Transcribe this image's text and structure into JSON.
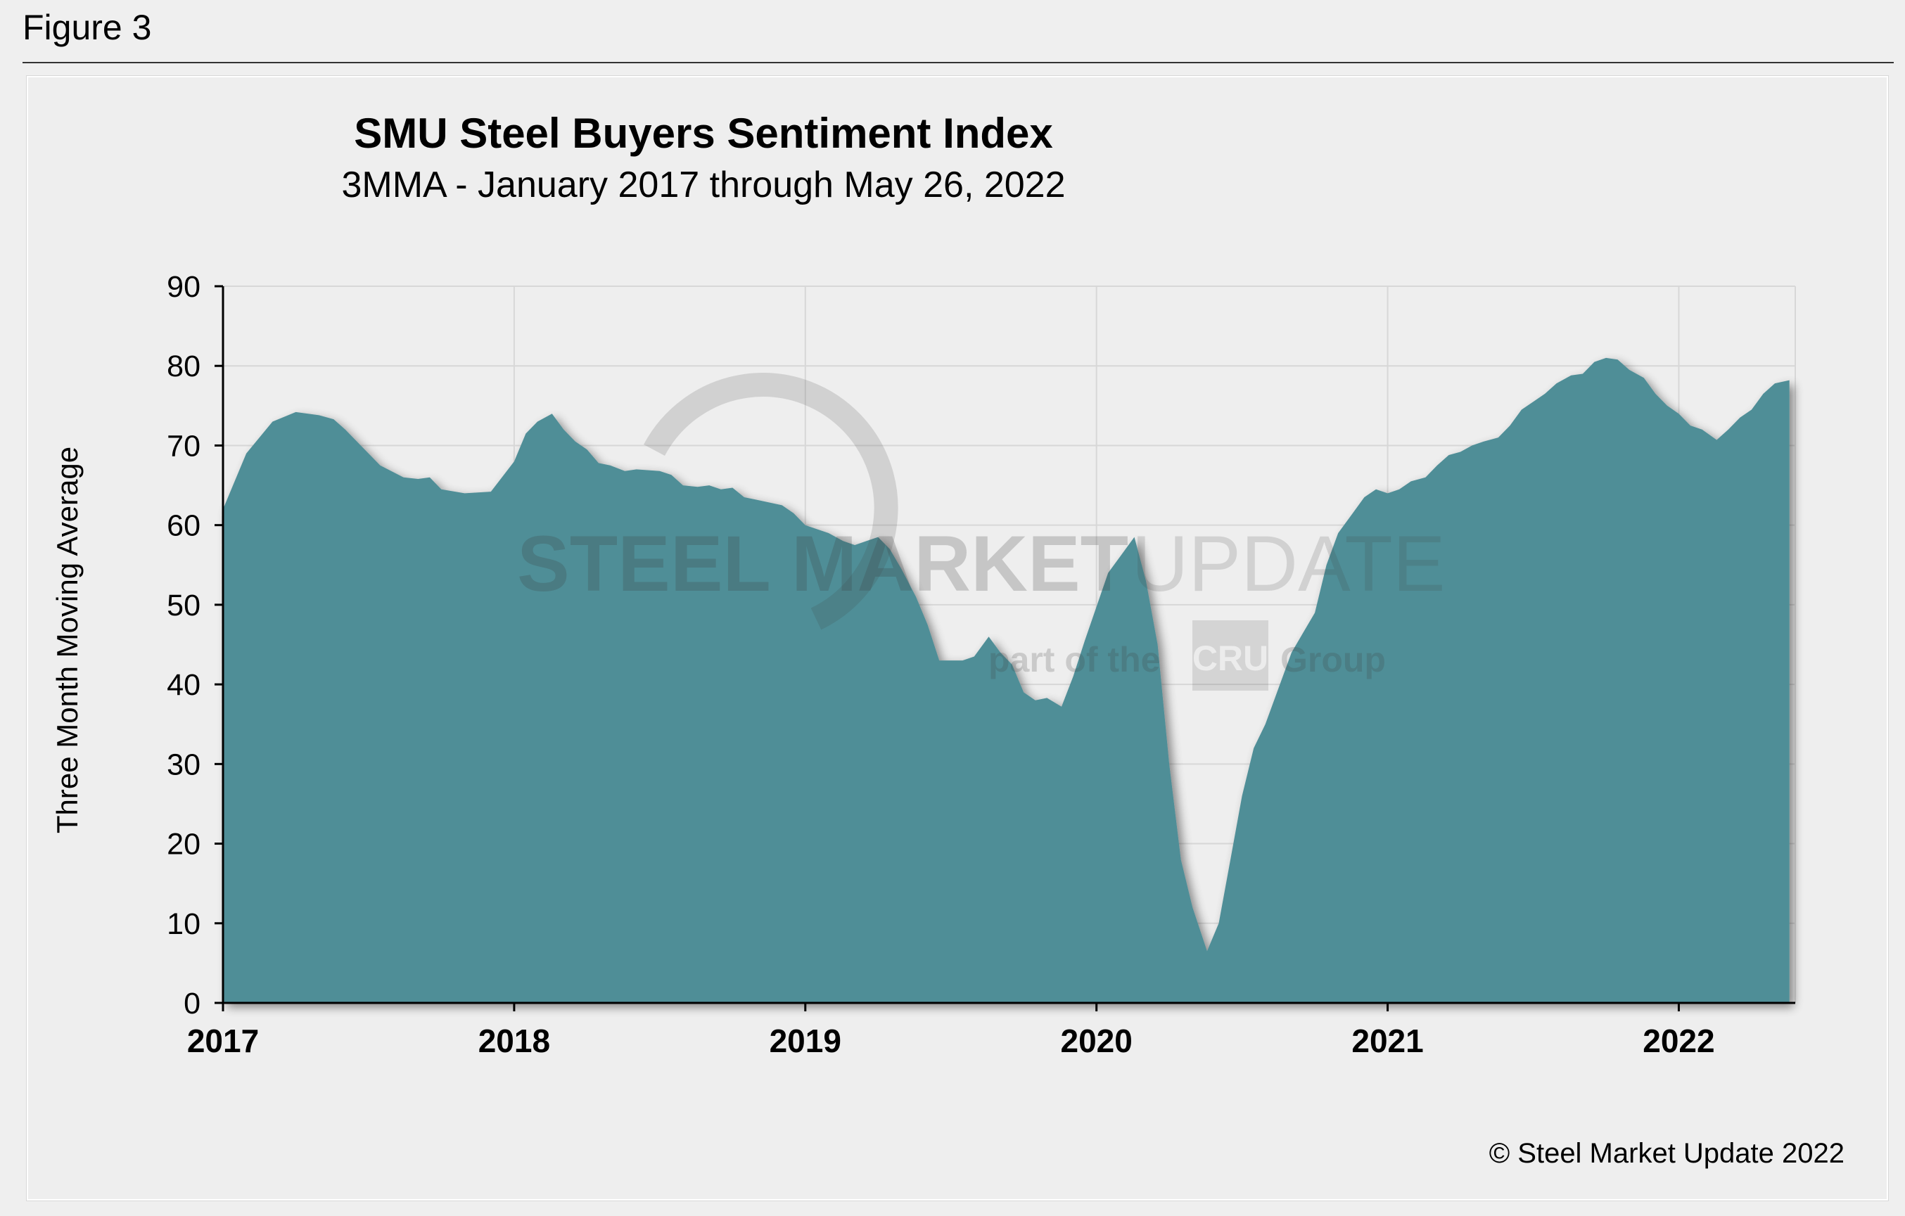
{
  "figure_label": "Figure 3",
  "copyright": "© Steel Market Update 2022",
  "watermark": {
    "line1_bold": "STEEL MARKET",
    "line1_thin": "UPDATE",
    "line2_before": "part of the",
    "line2_logo": "CRU",
    "line2_after": "Group"
  },
  "colors": {
    "area_fill": "#508e97",
    "grid": "#d7d7d7",
    "axis": "#000000"
  },
  "chart_data": {
    "type": "area",
    "title": "SMU Steel Buyers Sentiment Index",
    "subtitle": "3MMA - January 2017 through May 26, 2022",
    "xlabel": "",
    "ylabel": "Three Month Moving Average",
    "xlim": [
      2017.0,
      2022.4
    ],
    "ylim": [
      0,
      90
    ],
    "yticks": [
      "0",
      "10",
      "20",
      "30",
      "40",
      "50",
      "60",
      "70",
      "80",
      "90"
    ],
    "xticks": [
      {
        "value": 2017,
        "label": "2017"
      },
      {
        "value": 2018,
        "label": "2018"
      },
      {
        "value": 2019,
        "label": "2019"
      },
      {
        "value": 2020,
        "label": "2020"
      },
      {
        "value": 2021,
        "label": "2021"
      },
      {
        "value": 2022,
        "label": "2022"
      }
    ],
    "grid": true,
    "series": [
      {
        "name": "SMU Steel Buyers Sentiment Index 3MMA",
        "points": [
          [
            2017.0,
            62
          ],
          [
            2017.08,
            69
          ],
          [
            2017.17,
            73
          ],
          [
            2017.25,
            74.2
          ],
          [
            2017.33,
            73.8
          ],
          [
            2017.38,
            73.3
          ],
          [
            2017.42,
            72
          ],
          [
            2017.5,
            69
          ],
          [
            2017.54,
            67.5
          ],
          [
            2017.62,
            66
          ],
          [
            2017.67,
            65.8
          ],
          [
            2017.71,
            66
          ],
          [
            2017.75,
            64.5
          ],
          [
            2017.83,
            64
          ],
          [
            2017.92,
            64.2
          ],
          [
            2018.0,
            68
          ],
          [
            2018.04,
            71.5
          ],
          [
            2018.08,
            73
          ],
          [
            2018.13,
            74
          ],
          [
            2018.17,
            72
          ],
          [
            2018.21,
            70.5
          ],
          [
            2018.25,
            69.5
          ],
          [
            2018.29,
            67.8
          ],
          [
            2018.33,
            67.5
          ],
          [
            2018.38,
            66.8
          ],
          [
            2018.42,
            67
          ],
          [
            2018.5,
            66.8
          ],
          [
            2018.54,
            66.3
          ],
          [
            2018.58,
            65
          ],
          [
            2018.63,
            64.8
          ],
          [
            2018.67,
            65
          ],
          [
            2018.71,
            64.5
          ],
          [
            2018.75,
            64.7
          ],
          [
            2018.79,
            63.5
          ],
          [
            2018.83,
            63.2
          ],
          [
            2018.92,
            62.5
          ],
          [
            2018.96,
            61.5
          ],
          [
            2019.0,
            60
          ],
          [
            2019.08,
            59
          ],
          [
            2019.13,
            58
          ],
          [
            2019.17,
            57.5
          ],
          [
            2019.21,
            58
          ],
          [
            2019.25,
            58.5
          ],
          [
            2019.29,
            57
          ],
          [
            2019.33,
            54.5
          ],
          [
            2019.38,
            51
          ],
          [
            2019.42,
            47.5
          ],
          [
            2019.46,
            43
          ],
          [
            2019.54,
            43
          ],
          [
            2019.58,
            43.5
          ],
          [
            2019.63,
            46
          ],
          [
            2019.67,
            44
          ],
          [
            2019.71,
            42.5
          ],
          [
            2019.75,
            39
          ],
          [
            2019.79,
            38
          ],
          [
            2019.83,
            38.3
          ],
          [
            2019.88,
            37.2
          ],
          [
            2019.92,
            41
          ],
          [
            2019.96,
            45.5
          ],
          [
            2020.04,
            54
          ],
          [
            2020.08,
            56
          ],
          [
            2020.13,
            58.5
          ],
          [
            2020.17,
            53
          ],
          [
            2020.21,
            45
          ],
          [
            2020.25,
            30
          ],
          [
            2020.29,
            18
          ],
          [
            2020.33,
            12
          ],
          [
            2020.38,
            6.5
          ],
          [
            2020.42,
            10
          ],
          [
            2020.46,
            18
          ],
          [
            2020.5,
            26
          ],
          [
            2020.54,
            32
          ],
          [
            2020.58,
            35
          ],
          [
            2020.63,
            40
          ],
          [
            2020.67,
            44
          ],
          [
            2020.71,
            46.5
          ],
          [
            2020.75,
            49
          ],
          [
            2020.79,
            55
          ],
          [
            2020.83,
            59
          ],
          [
            2020.88,
            61.5
          ],
          [
            2020.92,
            63.5
          ],
          [
            2020.96,
            64.5
          ],
          [
            2021.0,
            64
          ],
          [
            2021.04,
            64.5
          ],
          [
            2021.08,
            65.5
          ],
          [
            2021.13,
            66
          ],
          [
            2021.17,
            67.5
          ],
          [
            2021.21,
            68.8
          ],
          [
            2021.25,
            69.2
          ],
          [
            2021.29,
            70
          ],
          [
            2021.33,
            70.5
          ],
          [
            2021.38,
            71
          ],
          [
            2021.42,
            72.5
          ],
          [
            2021.46,
            74.5
          ],
          [
            2021.5,
            75.5
          ],
          [
            2021.54,
            76.5
          ],
          [
            2021.58,
            77.8
          ],
          [
            2021.63,
            78.8
          ],
          [
            2021.67,
            79
          ],
          [
            2021.71,
            80.5
          ],
          [
            2021.75,
            81
          ],
          [
            2021.79,
            80.8
          ],
          [
            2021.83,
            79.5
          ],
          [
            2021.88,
            78.5
          ],
          [
            2021.92,
            76.5
          ],
          [
            2021.96,
            75
          ],
          [
            2022.0,
            74
          ],
          [
            2022.04,
            72.5
          ],
          [
            2022.08,
            72
          ],
          [
            2022.13,
            70.7
          ],
          [
            2022.17,
            72
          ],
          [
            2022.21,
            73.5
          ],
          [
            2022.25,
            74.5
          ],
          [
            2022.29,
            76.5
          ],
          [
            2022.33,
            77.8
          ],
          [
            2022.38,
            78.2
          ]
        ]
      }
    ]
  }
}
